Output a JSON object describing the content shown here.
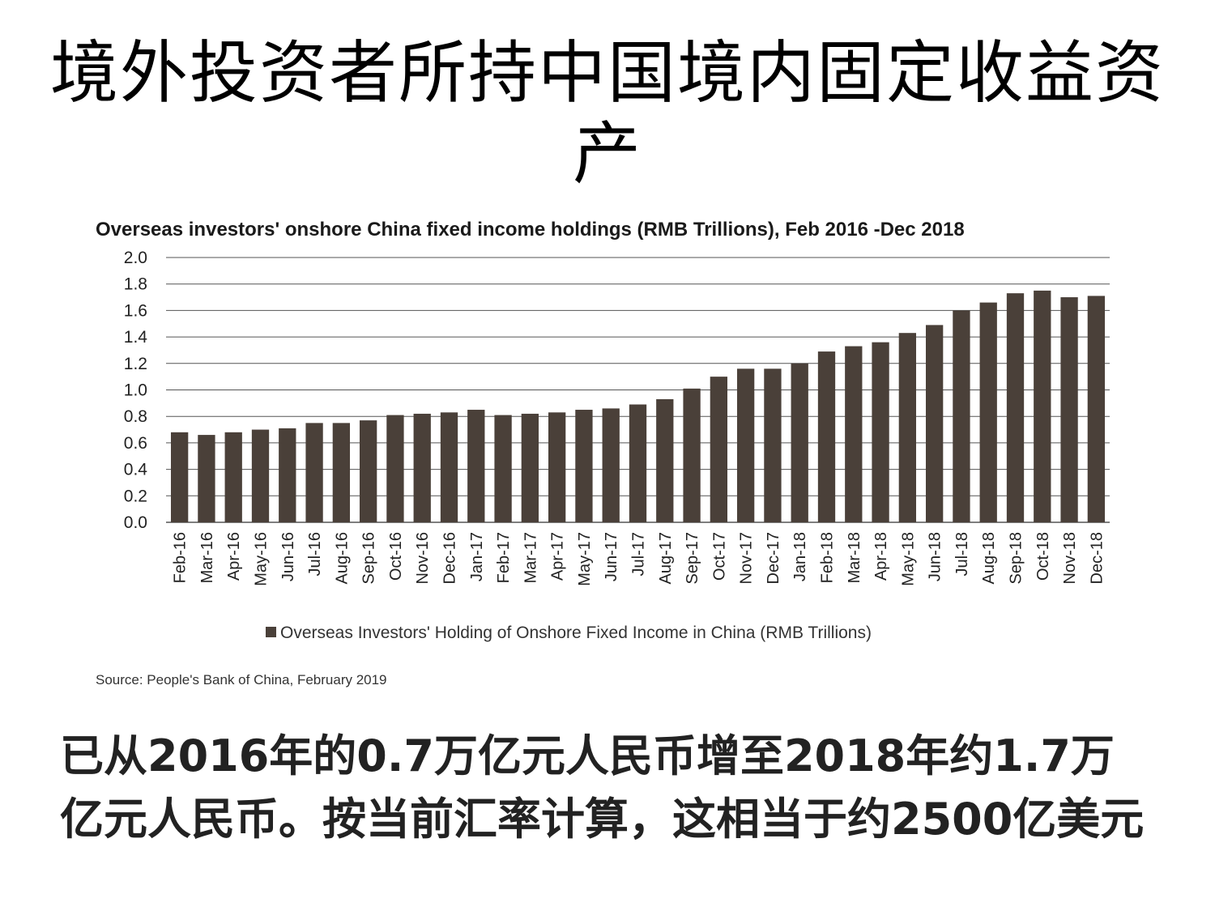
{
  "slide": {
    "title": "境外投资者所持中国境内固定收益资产",
    "caption": "已从2016年的0.7万亿元人民币增至2018年约1.7万亿元人民币。按当前汇率计算，这相当于约2500亿美元"
  },
  "chart_data": {
    "type": "bar",
    "title": "Overseas investors' onshore China fixed income holdings (RMB Trillions), Feb 2016 -Dec 2018",
    "source": "Source: People's Bank of China, February 2019",
    "categories": [
      "Feb-16",
      "Mar-16",
      "Apr-16",
      "May-16",
      "Jun-16",
      "Jul-16",
      "Aug-16",
      "Sep-16",
      "Oct-16",
      "Nov-16",
      "Dec-16",
      "Jan-17",
      "Feb-17",
      "Mar-17",
      "Apr-17",
      "May-17",
      "Jun-17",
      "Jul-17",
      "Aug-17",
      "Sep-17",
      "Oct-17",
      "Nov-17",
      "Dec-17",
      "Jan-18",
      "Feb-18",
      "Mar-18",
      "Apr-18",
      "May-18",
      "Jun-18",
      "Jul-18",
      "Aug-18",
      "Sep-18",
      "Oct-18",
      "Nov-18",
      "Dec-18"
    ],
    "series": [
      {
        "name": "Overseas Investors' Holding of Onshore Fixed Income in China (RMB Trillions)",
        "values": [
          0.68,
          0.66,
          0.68,
          0.7,
          0.71,
          0.75,
          0.75,
          0.77,
          0.81,
          0.82,
          0.83,
          0.85,
          0.81,
          0.82,
          0.83,
          0.85,
          0.86,
          0.89,
          0.93,
          1.01,
          1.1,
          1.16,
          1.16,
          1.2,
          1.29,
          1.33,
          1.36,
          1.43,
          1.49,
          1.6,
          1.66,
          1.73,
          1.75,
          1.7,
          1.71
        ]
      }
    ],
    "yticks": [
      "0.0",
      "0.2",
      "0.4",
      "0.6",
      "0.8",
      "1.0",
      "1.2",
      "1.4",
      "1.6",
      "1.8",
      "2.0"
    ],
    "ylim": [
      0,
      2.0
    ],
    "grid": true,
    "legend": "bottom",
    "colors": {
      "bar": "#4a4039",
      "grid": "#555555"
    }
  }
}
